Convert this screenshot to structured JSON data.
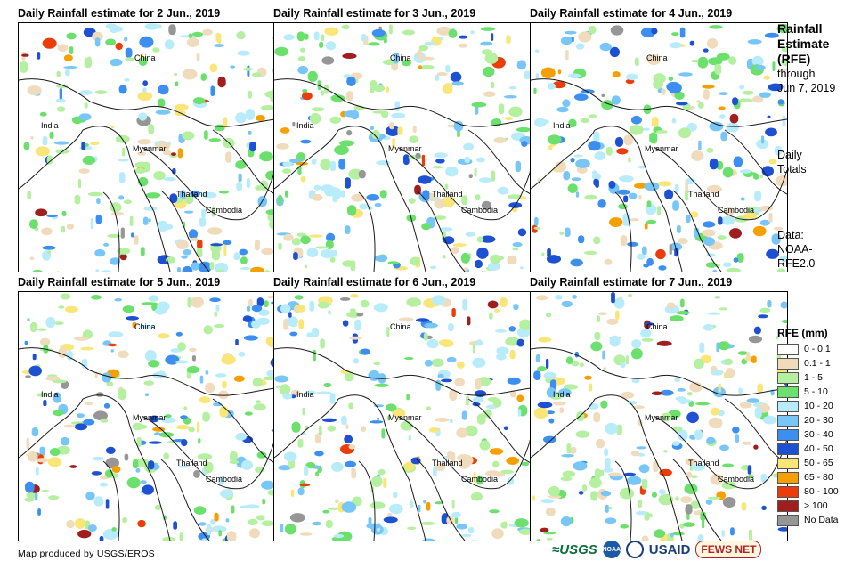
{
  "panels": [
    {
      "title": "Daily Rainfall estimate for 2 Jun., 2019"
    },
    {
      "title": "Daily Rainfall estimate for 3 Jun., 2019"
    },
    {
      "title": "Daily Rainfall estimate for 4 Jun., 2019"
    },
    {
      "title": "Daily Rainfall estimate for 5 Jun., 2019"
    },
    {
      "title": "Daily Rainfall estimate for 6 Jun., 2019"
    },
    {
      "title": "Daily Rainfall estimate for 7 Jun., 2019"
    }
  ],
  "map_labels": {
    "china": "China",
    "india": "India",
    "myanmar": "Myanmar",
    "thailand": "Thailand",
    "cambodia": "Cambodia"
  },
  "side": {
    "title_line1": "Rainfall",
    "title_line2": "Estimate",
    "title_line3": "(RFE)",
    "through": "through",
    "date": "Jun 7, 2019",
    "daily": "Daily",
    "totals": "Totals",
    "data_label": "Data:",
    "source1": "NOAA-",
    "source2": "RFE2.0"
  },
  "legend": {
    "title": "RFE (mm)",
    "items": [
      {
        "label": "0 - 0.1",
        "color": "#ffffff"
      },
      {
        "label": "0.1 - 1",
        "color": "#f0dcbc"
      },
      {
        "label": "1 - 5",
        "color": "#b4f0a0"
      },
      {
        "label": "5 - 10",
        "color": "#6ce06c"
      },
      {
        "label": "10 - 20",
        "color": "#b8ecfa"
      },
      {
        "label": "20 - 30",
        "color": "#78c6f8"
      },
      {
        "label": "30 - 40",
        "color": "#3c8ef0"
      },
      {
        "label": "40 - 50",
        "color": "#1e50d2"
      },
      {
        "label": "50 - 65",
        "color": "#fae678"
      },
      {
        "label": "65 - 80",
        "color": "#f5a000"
      },
      {
        "label": "80 - 100",
        "color": "#eb3c0a"
      },
      {
        "label": "> 100",
        "color": "#a01e1e"
      },
      {
        "label": "No Data",
        "color": "#969696"
      }
    ]
  },
  "footer": {
    "credit": "Map produced by USGS/EROS",
    "logo_usgs": "≈USGS",
    "logo_noaa": "NOAA",
    "logo_usaid": "USAID",
    "logo_fews": "FEWS NET"
  }
}
